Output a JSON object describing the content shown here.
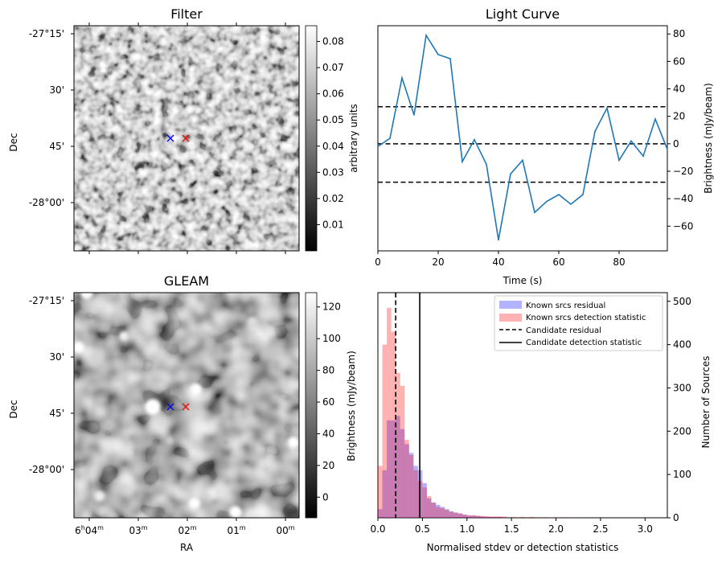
{
  "chart_data": [
    {
      "type": "heatmap",
      "title": "Filter",
      "ylabel": "Dec",
      "yticks": [
        "-27°15'",
        "30'",
        "45'",
        "-28°00'"
      ],
      "colorbar": {
        "label": "arbitrary units",
        "range": [
          0.0,
          0.086
        ],
        "ticks": [
          "0.01",
          "0.02",
          "0.03",
          "0.04",
          "0.05",
          "0.06",
          "0.07",
          "0.08"
        ],
        "tick_values": [
          0.01,
          0.02,
          0.03,
          0.04,
          0.05,
          0.06,
          0.07,
          0.08
        ]
      },
      "markers": [
        {
          "symbol": "x",
          "color": "#0000ff"
        },
        {
          "symbol": "x",
          "color": "#ff0000"
        }
      ]
    },
    {
      "type": "line",
      "title": "Light Curve",
      "xlabel": "Time (s)",
      "ylabel": "Brightness (mJy/beam)",
      "xlim": [
        0,
        96
      ],
      "ylim": [
        -78,
        86
      ],
      "xticks": [
        0,
        20,
        40,
        60,
        80
      ],
      "yticks": [
        -60,
        -40,
        -20,
        0,
        20,
        40,
        60,
        80
      ],
      "x": [
        0,
        4,
        8,
        12,
        16,
        20,
        24,
        28,
        32,
        36,
        40,
        44,
        48,
        52,
        56,
        60,
        64,
        68,
        72,
        76,
        80,
        84,
        88,
        92,
        96
      ],
      "y": [
        -2,
        4,
        48,
        21,
        79,
        65,
        62,
        -13,
        3,
        -15,
        -70,
        -22,
        -12,
        -50,
        -42,
        -37,
        -44,
        -37,
        9,
        26,
        -12,
        2,
        -9,
        18,
        -4
      ],
      "color": "#1f77b4",
      "hlines": [
        {
          "y": 27,
          "style": "dashed"
        },
        {
          "y": 0,
          "style": "dashed"
        },
        {
          "y": -28,
          "style": "dashed"
        }
      ]
    },
    {
      "type": "heatmap",
      "title": "GLEAM",
      "xlabel": "RA",
      "ylabel": "Dec",
      "xticks": [
        "6h04m",
        "03m",
        "02m",
        "01m",
        "00m"
      ],
      "yticks": [
        "-27°15'",
        "30'",
        "45'",
        "-28°00'"
      ],
      "colorbar": {
        "label": "Brightness (mJy/beam)",
        "range": [
          -13,
          129
        ],
        "ticks": [
          "0",
          "20",
          "40",
          "60",
          "80",
          "100",
          "120"
        ],
        "tick_values": [
          0,
          20,
          40,
          60,
          80,
          100,
          120
        ]
      },
      "markers": [
        {
          "symbol": "x",
          "color": "#0000ff"
        },
        {
          "symbol": "x",
          "color": "#ff0000"
        }
      ]
    },
    {
      "type": "bar",
      "subtype": "histogram",
      "xlabel": "Normalised stdev or detection statistics",
      "ylabel": "Number of Sources",
      "xlim": [
        0,
        3.25
      ],
      "ylim": [
        0,
        520
      ],
      "xticks": [
        "0.0",
        "0.5",
        "1.0",
        "1.5",
        "2.0",
        "2.5",
        "3.0"
      ],
      "xtick_values": [
        0,
        0.5,
        1.0,
        1.5,
        2.0,
        2.5,
        3.0
      ],
      "yticks": [
        0,
        100,
        200,
        300,
        400,
        500
      ],
      "bin_width": 0.05,
      "series": [
        {
          "name": "Known srcs residual",
          "color": "#0000ff",
          "alpha": 0.3,
          "bins_start": [
            0.0,
            0.05,
            0.1,
            0.15,
            0.2,
            0.25,
            0.3,
            0.35,
            0.4,
            0.45,
            0.5,
            0.55,
            0.6,
            0.65,
            0.7,
            0.75,
            0.8,
            0.85,
            0.9,
            0.95,
            1.0,
            1.05,
            1.1,
            1.15,
            1.2,
            1.25,
            1.3,
            1.35,
            1.4
          ],
          "values": [
            20,
            110,
            225,
            225,
            235,
            205,
            170,
            150,
            120,
            110,
            80,
            45,
            35,
            30,
            25,
            20,
            15,
            12,
            10,
            7,
            5,
            5,
            4,
            3,
            2,
            2,
            2,
            2,
            1
          ]
        },
        {
          "name": "Known srcs detection statistic",
          "color": "#ff0000",
          "alpha": 0.3,
          "bins_start": [
            0.0,
            0.05,
            0.1,
            0.15,
            0.2,
            0.25,
            0.3,
            0.35,
            0.4,
            0.45,
            0.5,
            0.55,
            0.6,
            0.65,
            0.7,
            0.75,
            0.8,
            0.85,
            0.9,
            0.95,
            1.0,
            1.05,
            1.1,
            1.15,
            1.2,
            1.25,
            1.3,
            1.35,
            1.4,
            1.5,
            1.6,
            1.7,
            1.8,
            1.9,
            2.0,
            2.2
          ],
          "values": [
            120,
            400,
            485,
            430,
            335,
            305,
            180,
            145,
            110,
            85,
            70,
            50,
            35,
            25,
            22,
            18,
            14,
            12,
            10,
            8,
            6,
            6,
            5,
            4,
            4,
            3,
            3,
            3,
            3,
            2,
            2,
            2,
            1,
            1,
            1,
            1
          ]
        }
      ],
      "vlines": [
        {
          "name": "Candidate residual",
          "x": 0.2,
          "style": "dashed"
        },
        {
          "name": "Candidate detection statistic",
          "x": 0.47,
          "style": "solid"
        }
      ],
      "legend_position": "top-right"
    }
  ]
}
